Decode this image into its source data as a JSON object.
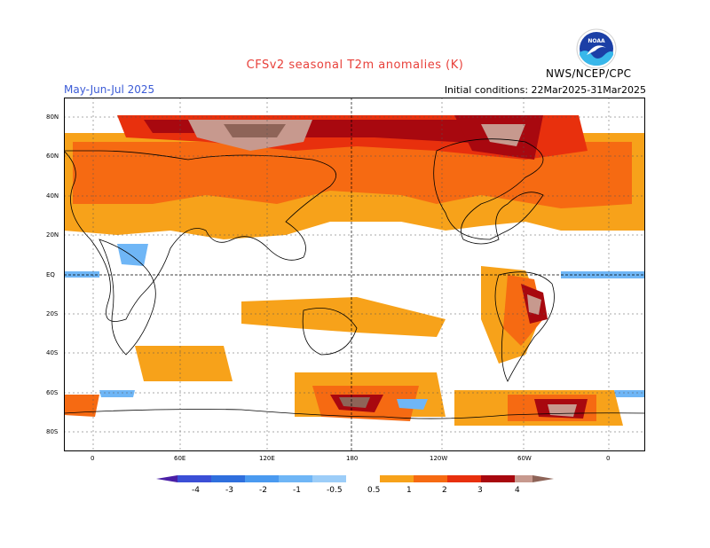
{
  "header": {
    "title": "CFSv2 seasonal T2m anomalies (K)",
    "period": "May-Jun-Jul 2025",
    "initial_conditions": "Initial conditions: 22Mar2025-31Mar2025",
    "agency": "NWS/NCEP/CPC",
    "logo_text": "NOAA"
  },
  "map": {
    "projection": "global cylindrical, 0 to 360 longitude",
    "lat_labels": [
      "80N",
      "60N",
      "40N",
      "20N",
      "EQ",
      "20S",
      "40S",
      "60S",
      "80S"
    ],
    "lon_labels": [
      "0",
      "60E",
      "120E",
      "180",
      "120W",
      "60W",
      "0"
    ]
  },
  "colorbar": {
    "labels": [
      "-4",
      "-3",
      "-2",
      "-1",
      "-0.5",
      "0.5",
      "1",
      "2",
      "3",
      "4"
    ],
    "colors": [
      "#4a1fa6",
      "#3b4fd6",
      "#2f6fdd",
      "#4a9af0",
      "#6fb6f6",
      "#ffffff",
      "#f7a21a",
      "#f66a12",
      "#e8300d",
      "#a8080f",
      "#c7998e",
      "#8e6458"
    ]
  }
}
